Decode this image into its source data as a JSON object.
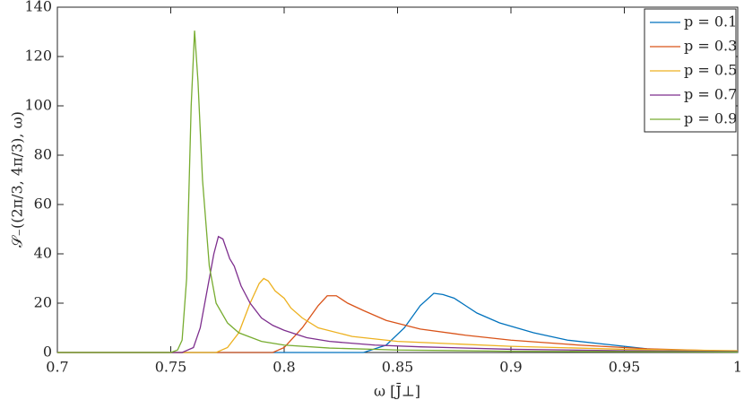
{
  "chart_data": {
    "type": "line",
    "xlabel": "ω [J̄⊥]",
    "ylabel": "𝒮₋((2π/3, 4π/3), ω)",
    "xlim": [
      0.7,
      1
    ],
    "xticks": [
      0.7,
      0.75,
      0.8,
      0.85,
      0.9,
      0.95,
      1
    ],
    "ylim": [
      0,
      140
    ],
    "yticks": [
      0,
      20,
      40,
      60,
      80,
      100,
      120,
      140
    ],
    "legend": "northeast",
    "series": [
      {
        "name": "p = 0.1",
        "color": "#0072BD",
        "x": [
          0.7,
          0.835,
          0.845,
          0.853,
          0.86,
          0.866,
          0.87,
          0.875,
          0.88,
          0.885,
          0.895,
          0.91,
          0.925,
          0.94,
          0.96,
          0.98,
          1
        ],
        "values": [
          0,
          0,
          3,
          10,
          19,
          24,
          23.5,
          22,
          19,
          16,
          12,
          8,
          5,
          3.5,
          1.5,
          0.5,
          0.2
        ]
      },
      {
        "name": "p = 0.3",
        "color": "#D95319",
        "x": [
          0.7,
          0.795,
          0.8,
          0.808,
          0.815,
          0.819,
          0.823,
          0.828,
          0.835,
          0.845,
          0.86,
          0.88,
          0.9,
          0.93,
          0.96,
          1
        ],
        "values": [
          0,
          0,
          2,
          10,
          19,
          23,
          23,
          20,
          17,
          13,
          9.5,
          7,
          5,
          3,
          1.5,
          0.5
        ]
      },
      {
        "name": "p = 0.5",
        "color": "#EDB120",
        "x": [
          0.7,
          0.77,
          0.775,
          0.78,
          0.785,
          0.789,
          0.791,
          0.793,
          0.796,
          0.8,
          0.803,
          0.808,
          0.815,
          0.83,
          0.85,
          0.9,
          0.95,
          1
        ],
        "values": [
          0,
          0,
          2,
          8,
          20,
          28,
          30,
          29,
          25,
          22,
          18,
          14,
          10,
          6.5,
          4.5,
          2.5,
          1.3,
          0.7
        ]
      },
      {
        "name": "p = 0.7",
        "color": "#7E2F8E",
        "x": [
          0.7,
          0.755,
          0.76,
          0.763,
          0.766,
          0.769,
          0.771,
          0.773,
          0.776,
          0.778,
          0.781,
          0.785,
          0.79,
          0.795,
          0.8,
          0.81,
          0.82,
          0.84,
          0.86,
          0.9,
          0.95,
          1
        ],
        "values": [
          0,
          0,
          2,
          10,
          25,
          40,
          47,
          46,
          38,
          35,
          27,
          20,
          14,
          11,
          9,
          6,
          4.5,
          3,
          2.3,
          1.3,
          0.7,
          0.4
        ]
      },
      {
        "name": "p = 0.9",
        "color": "#77AC30",
        "x": [
          0.7,
          0.75,
          0.753,
          0.755,
          0.757,
          0.759,
          0.7605,
          0.762,
          0.764,
          0.767,
          0.77,
          0.775,
          0.78,
          0.79,
          0.8,
          0.82,
          0.85,
          0.9,
          1
        ],
        "values": [
          0,
          0,
          1,
          5,
          30,
          100,
          130.5,
          110,
          70,
          35,
          20,
          12,
          8,
          4.5,
          3,
          1.8,
          1,
          0.5,
          0.2
        ]
      }
    ]
  }
}
